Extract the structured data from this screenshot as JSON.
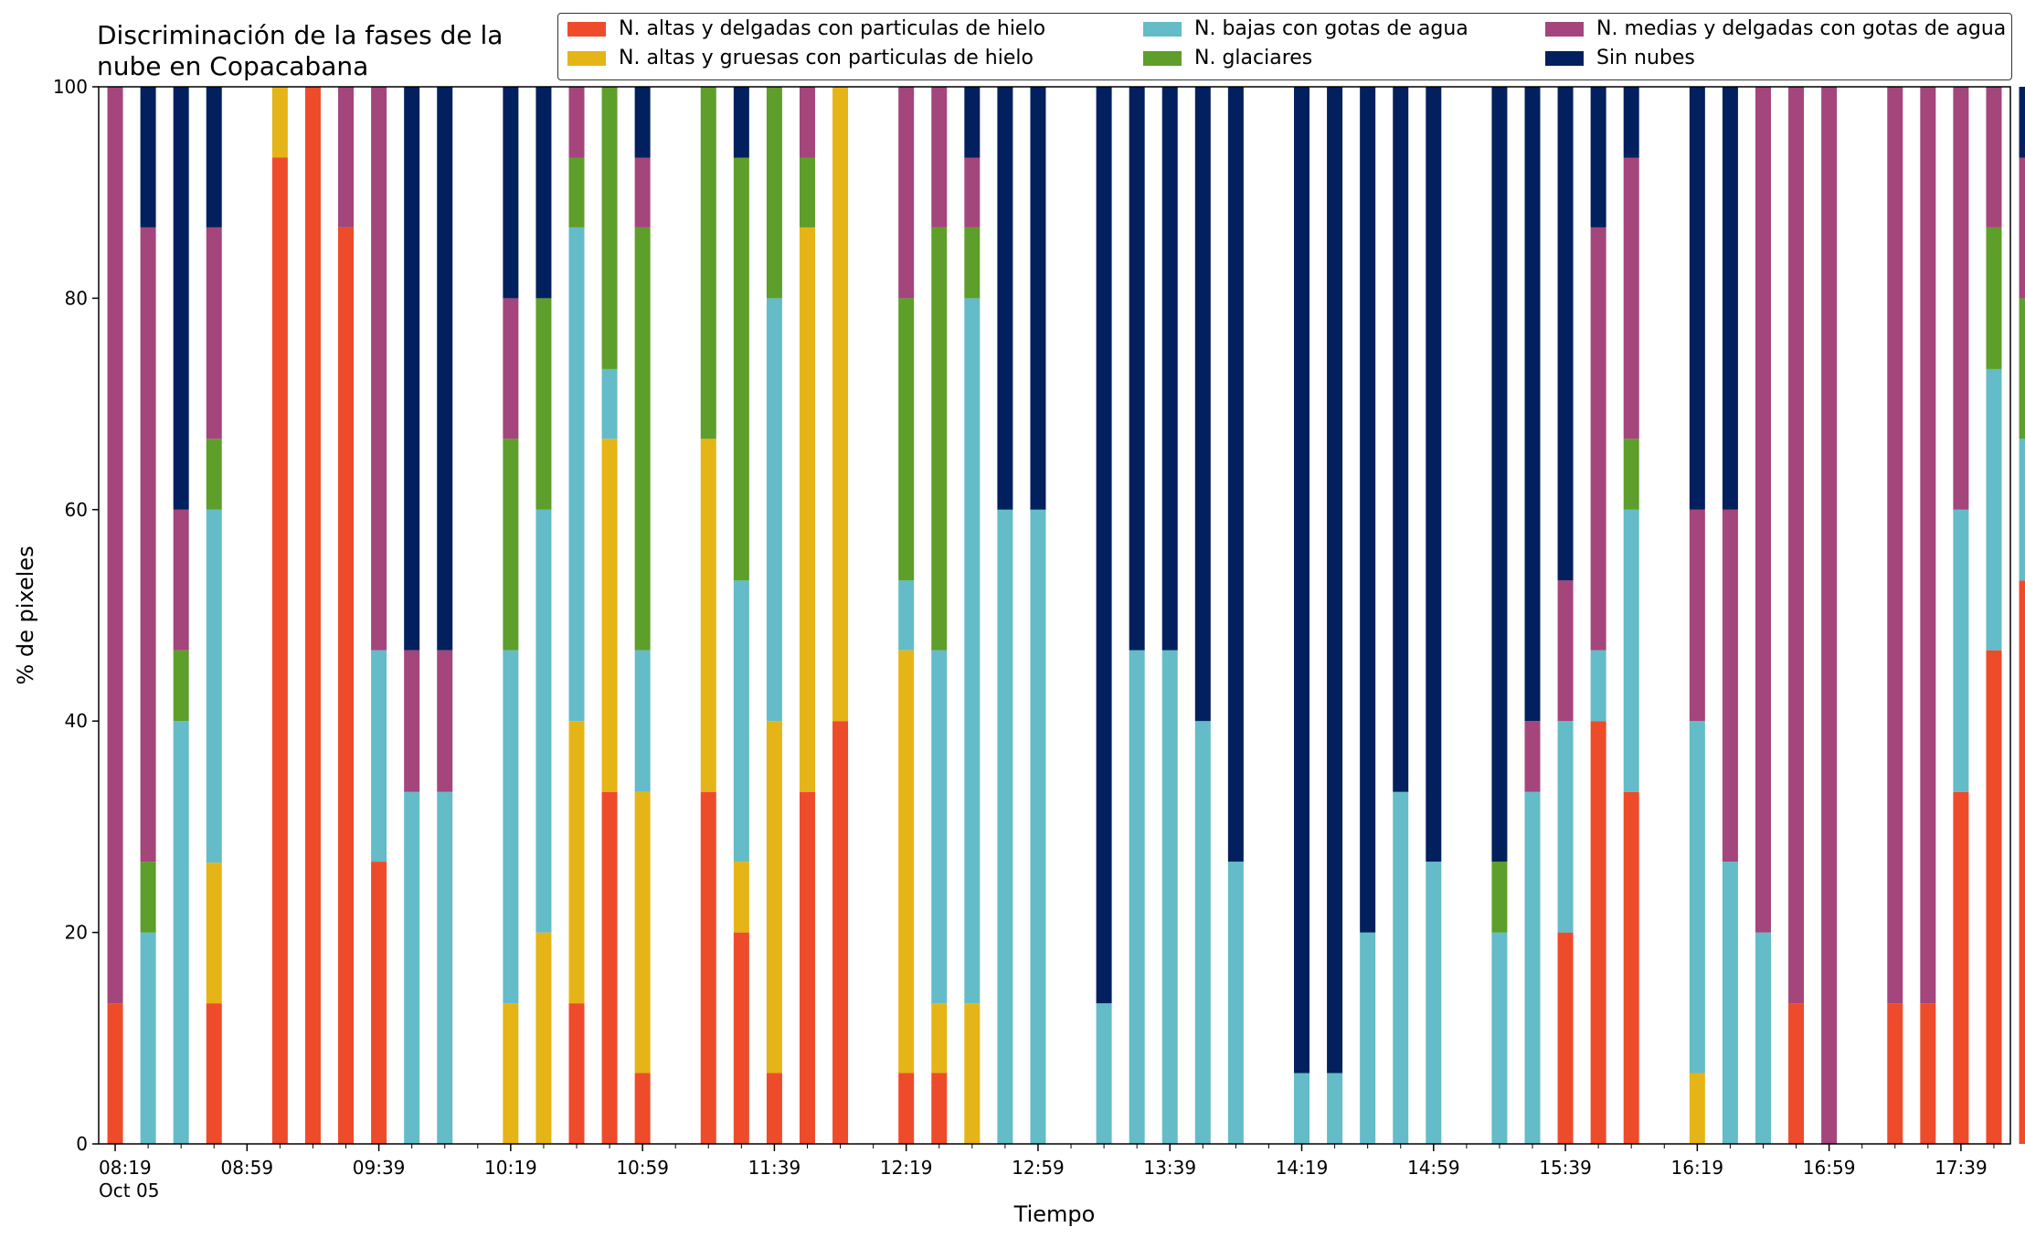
{
  "chart_data": {
    "type": "bar",
    "stacked": true,
    "title": "Discriminación de la fases de la\nnube en Copacabana",
    "xlabel": "Tiempo",
    "ylabel": "% de pixeles",
    "ylim": [
      0,
      100
    ],
    "yticks": [
      0,
      20,
      40,
      60,
      80,
      100
    ],
    "xlim_minutes_from_0819": [
      -5,
      575
    ],
    "xtick_labels": [
      "08:19\nOct 05",
      "08:59",
      "09:39",
      "10:19",
      "10:59",
      "11:39",
      "12:19",
      "12:59",
      "13:39",
      "14:19",
      "14:59",
      "15:39",
      "16:19",
      "16:59",
      "17:39"
    ],
    "legend_placement": "top-right",
    "grid": false,
    "series": [
      {
        "name": "N. altas y delgadas con particulas de hielo",
        "color": "#EE4B2B"
      },
      {
        "name": "N. altas y gruesas con particulas de hielo",
        "color": "#E5B417"
      },
      {
        "name": "N. bajas con gotas de agua",
        "color": "#63BCC8"
      },
      {
        "name": "N. glaciares",
        "color": "#5E9E2A"
      },
      {
        "name": "N. medias y delgadas con gotas de agua",
        "color": "#A4457B"
      },
      {
        "name": "Sin nubes",
        "color": "#02205E"
      }
    ],
    "bars": [
      {
        "time": "08:19",
        "values": [
          13.3,
          0,
          0,
          0,
          86.7,
          0
        ]
      },
      {
        "time": "08:29",
        "values": [
          0,
          0,
          20,
          6.7,
          60,
          13.3
        ]
      },
      {
        "time": "08:39",
        "values": [
          0,
          0,
          40,
          6.7,
          13.3,
          40
        ]
      },
      {
        "time": "08:49",
        "values": [
          13.3,
          13.3,
          33.4,
          6.7,
          20,
          13.3
        ]
      },
      {
        "time": "09:09",
        "values": [
          93.3,
          6.7,
          0,
          0,
          0,
          0
        ]
      },
      {
        "time": "09:19",
        "values": [
          100,
          0,
          0,
          0,
          0,
          0
        ]
      },
      {
        "time": "09:29",
        "values": [
          86.7,
          0,
          0,
          0,
          13.3,
          0
        ]
      },
      {
        "time": "09:39",
        "values": [
          26.7,
          0,
          20,
          0,
          53.3,
          0
        ]
      },
      {
        "time": "09:49",
        "values": [
          0,
          0,
          33.3,
          0,
          13.4,
          53.3
        ]
      },
      {
        "time": "09:59",
        "values": [
          0,
          0,
          33.3,
          0,
          13.4,
          53.3
        ]
      },
      {
        "time": "10:19",
        "values": [
          0,
          13.3,
          33.4,
          20,
          13.3,
          20
        ]
      },
      {
        "time": "10:29",
        "values": [
          0,
          20,
          40,
          20,
          0,
          20
        ]
      },
      {
        "time": "10:39",
        "values": [
          13.3,
          26.7,
          46.7,
          6.6,
          6.7,
          0
        ]
      },
      {
        "time": "10:49",
        "values": [
          33.3,
          33.4,
          6.6,
          26.7,
          0,
          0
        ]
      },
      {
        "time": "10:59",
        "values": [
          6.7,
          26.6,
          13.4,
          40,
          6.6,
          6.7
        ]
      },
      {
        "time": "11:19",
        "values": [
          33.3,
          33.4,
          0,
          33.3,
          0,
          0
        ]
      },
      {
        "time": "11:29",
        "values": [
          20,
          6.7,
          26.6,
          40,
          0,
          6.7
        ]
      },
      {
        "time": "11:39",
        "values": [
          6.7,
          33.3,
          40,
          20,
          0,
          0
        ]
      },
      {
        "time": "11:49",
        "values": [
          33.3,
          53.4,
          0,
          6.6,
          6.7,
          0
        ]
      },
      {
        "time": "11:59",
        "values": [
          40,
          60,
          0,
          0,
          0,
          0
        ]
      },
      {
        "time": "12:19",
        "values": [
          6.7,
          40,
          6.6,
          26.7,
          20,
          0
        ]
      },
      {
        "time": "12:29",
        "values": [
          6.7,
          6.6,
          33.4,
          40,
          13.3,
          0
        ]
      },
      {
        "time": "12:39",
        "values": [
          0,
          13.3,
          66.7,
          6.7,
          6.6,
          6.7
        ]
      },
      {
        "time": "12:49",
        "values": [
          0,
          0,
          60,
          0,
          0,
          40
        ]
      },
      {
        "time": "12:59",
        "values": [
          0,
          0,
          60,
          0,
          0,
          40
        ]
      },
      {
        "time": "13:19",
        "values": [
          0,
          0,
          13.3,
          0,
          0,
          86.7
        ]
      },
      {
        "time": "13:29",
        "values": [
          0,
          0,
          46.7,
          0,
          0,
          53.3
        ]
      },
      {
        "time": "13:39",
        "values": [
          0,
          0,
          46.7,
          0,
          0,
          53.3
        ]
      },
      {
        "time": "13:49",
        "values": [
          0,
          0,
          40,
          0,
          0,
          60
        ]
      },
      {
        "time": "13:59",
        "values": [
          0,
          0,
          26.7,
          0,
          0,
          73.3
        ]
      },
      {
        "time": "14:19",
        "values": [
          0,
          0,
          6.7,
          0,
          0,
          93.3
        ]
      },
      {
        "time": "14:29",
        "values": [
          0,
          0,
          6.7,
          0,
          0,
          93.3
        ]
      },
      {
        "time": "14:39",
        "values": [
          0,
          0,
          20,
          0,
          0,
          80
        ]
      },
      {
        "time": "14:49",
        "values": [
          0,
          0,
          33.3,
          0,
          0,
          66.7
        ]
      },
      {
        "time": "14:59",
        "values": [
          0,
          0,
          26.7,
          0,
          0,
          73.3
        ]
      },
      {
        "time": "15:19",
        "values": [
          0,
          0,
          20,
          6.7,
          0,
          73.3
        ]
      },
      {
        "time": "15:29",
        "values": [
          0,
          0,
          33.3,
          0,
          6.7,
          60
        ]
      },
      {
        "time": "15:39",
        "values": [
          20,
          0,
          20,
          0,
          13.3,
          46.7
        ]
      },
      {
        "time": "15:49",
        "values": [
          40,
          0,
          6.7,
          0,
          40,
          13.3
        ]
      },
      {
        "time": "15:59",
        "values": [
          33.3,
          0,
          26.7,
          6.7,
          26.6,
          6.7
        ]
      },
      {
        "time": "16:19",
        "values": [
          0,
          6.7,
          33.3,
          0,
          20,
          40
        ]
      },
      {
        "time": "16:29",
        "values": [
          0,
          0,
          26.7,
          0,
          33.3,
          40
        ]
      },
      {
        "time": "16:39",
        "values": [
          0,
          0,
          20,
          0,
          80,
          0
        ]
      },
      {
        "time": "16:49",
        "values": [
          13.3,
          0,
          0,
          0,
          86.7,
          0
        ]
      },
      {
        "time": "16:59",
        "values": [
          0,
          0,
          0,
          0,
          100,
          0
        ]
      },
      {
        "time": "17:19",
        "values": [
          13.3,
          0,
          0,
          0,
          86.7,
          0
        ]
      },
      {
        "time": "17:29",
        "values": [
          13.3,
          0,
          0,
          0,
          86.7,
          0
        ]
      },
      {
        "time": "17:39",
        "values": [
          33.3,
          0,
          26.7,
          0,
          40,
          0
        ]
      },
      {
        "time": "17:49",
        "values": [
          46.7,
          0,
          26.6,
          13.4,
          13.3,
          0
        ]
      },
      {
        "time": "17:59",
        "values": [
          53.3,
          0,
          13.4,
          13.3,
          13.3,
          6.7
        ]
      }
    ]
  }
}
